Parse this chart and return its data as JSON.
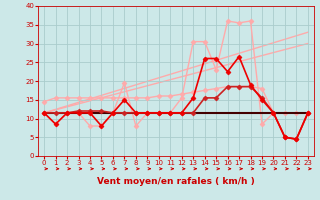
{
  "xlabel": "Vent moyen/en rafales ( km/h )",
  "background_color": "#cce8e8",
  "grid_color": "#aacccc",
  "xlim": [
    -0.5,
    23.5
  ],
  "ylim": [
    0,
    40
  ],
  "yticks": [
    0,
    5,
    10,
    15,
    20,
    25,
    30,
    35,
    40
  ],
  "xticks": [
    0,
    1,
    2,
    3,
    4,
    5,
    6,
    7,
    8,
    9,
    10,
    11,
    12,
    13,
    14,
    15,
    16,
    17,
    18,
    19,
    20,
    21,
    22,
    23
  ],
  "series": [
    {
      "x": [
        0,
        23
      ],
      "y": [
        11.5,
        33.0
      ],
      "color": "#ffaaaa",
      "linewidth": 1.0,
      "marker": null,
      "zorder": 1
    },
    {
      "x": [
        0,
        23
      ],
      "y": [
        11.5,
        30.0
      ],
      "color": "#ffaaaa",
      "linewidth": 1.0,
      "marker": null,
      "zorder": 1
    },
    {
      "x": [
        0,
        1,
        2,
        3,
        4,
        5,
        6,
        7,
        8,
        9,
        10,
        11,
        12,
        13,
        14,
        15,
        16,
        17,
        18,
        19,
        20,
        21,
        22,
        23
      ],
      "y": [
        14.5,
        15.5,
        15.5,
        15.5,
        15.5,
        15.5,
        15.5,
        15.5,
        15.5,
        15.5,
        16.0,
        16.0,
        16.5,
        17.0,
        17.5,
        18.0,
        18.5,
        18.5,
        18.5,
        18.0,
        11.5,
        11.5,
        11.5,
        11.5
      ],
      "color": "#ffaaaa",
      "linewidth": 1.0,
      "marker": "D",
      "markersize": 2.5,
      "zorder": 2
    },
    {
      "x": [
        0,
        1,
        2,
        3,
        4,
        5,
        6,
        7,
        8,
        9,
        10,
        11,
        12,
        13,
        14,
        15,
        16,
        17,
        18,
        19,
        20,
        21,
        22,
        23
      ],
      "y": [
        11.5,
        8.5,
        11.5,
        11.5,
        8.0,
        8.0,
        11.5,
        19.5,
        8.0,
        11.5,
        11.5,
        11.5,
        15.5,
        30.5,
        30.5,
        23.0,
        36.0,
        35.5,
        36.0,
        8.5,
        11.5,
        5.0,
        4.5,
        11.5
      ],
      "color": "#ffaaaa",
      "linewidth": 1.0,
      "marker": "D",
      "markersize": 2.5,
      "zorder": 3
    },
    {
      "x": [
        0,
        1,
        2,
        3,
        4,
        5,
        6,
        7,
        8,
        9,
        10,
        11,
        12,
        13,
        14,
        15,
        16,
        17,
        18,
        19,
        20,
        21,
        22,
        23
      ],
      "y": [
        11.5,
        11.5,
        11.5,
        11.5,
        11.5,
        11.5,
        11.5,
        11.5,
        11.5,
        11.5,
        11.5,
        11.5,
        11.5,
        11.5,
        11.5,
        11.5,
        11.5,
        11.5,
        11.5,
        11.5,
        11.5,
        11.5,
        11.5,
        11.5
      ],
      "color": "#440000",
      "linewidth": 1.5,
      "marker": null,
      "zorder": 4
    },
    {
      "x": [
        0,
        1,
        2,
        3,
        4,
        5,
        6,
        7,
        8,
        9,
        10,
        11,
        12,
        13,
        14,
        15,
        16,
        17,
        18,
        19,
        20,
        21,
        22,
        23
      ],
      "y": [
        11.5,
        11.5,
        11.5,
        12.0,
        12.0,
        12.0,
        11.5,
        11.5,
        11.5,
        11.5,
        11.5,
        11.5,
        11.5,
        11.5,
        15.5,
        15.5,
        18.5,
        18.5,
        18.5,
        15.5,
        11.5,
        5.0,
        4.5,
        11.5
      ],
      "color": "#cc2222",
      "linewidth": 1.2,
      "marker": "D",
      "markersize": 2.5,
      "zorder": 5
    },
    {
      "x": [
        0,
        1,
        2,
        3,
        4,
        5,
        6,
        7,
        8,
        9,
        10,
        11,
        12,
        13,
        14,
        15,
        16,
        17,
        18,
        19,
        20,
        21,
        22,
        23
      ],
      "y": [
        11.5,
        8.5,
        11.5,
        11.5,
        11.5,
        8.0,
        11.5,
        15.0,
        11.5,
        11.5,
        11.5,
        11.5,
        11.5,
        15.5,
        26.0,
        26.0,
        22.5,
        26.5,
        19.0,
        15.0,
        11.5,
        5.0,
        4.5,
        11.5
      ],
      "color": "#ee0000",
      "linewidth": 1.2,
      "marker": "D",
      "markersize": 2.5,
      "zorder": 6
    }
  ],
  "arrow_color": "#cc0000",
  "tick_color": "#cc0000",
  "xlabel_color": "#cc0000",
  "tick_fontsize": 5,
  "xlabel_fontsize": 6.5
}
